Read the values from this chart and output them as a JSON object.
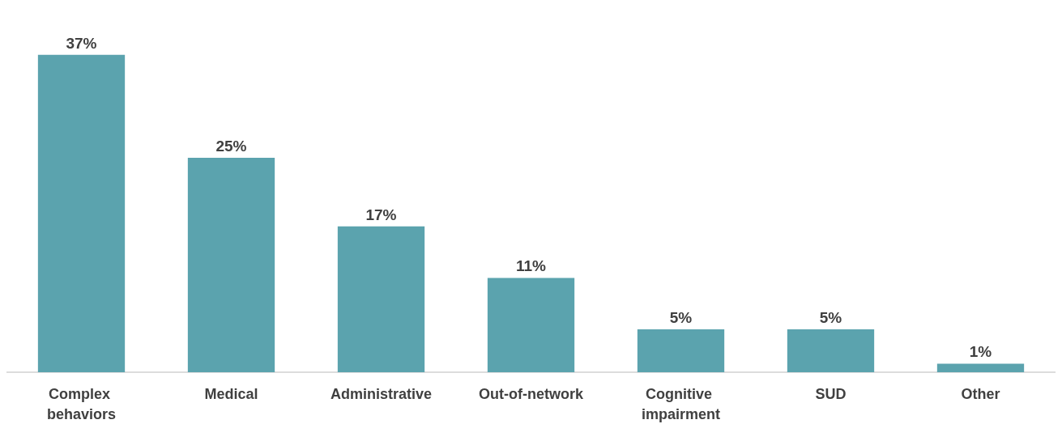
{
  "chart_data": {
    "type": "bar",
    "categories": [
      "Complex behaviors",
      "Medical",
      "Administrative",
      "Out-of-network",
      "Cognitive impairment",
      "SUD",
      "Other"
    ],
    "values": [
      37,
      25,
      17,
      11,
      5,
      5,
      1
    ],
    "value_labels": [
      "37%",
      "25%",
      "17%",
      "11%",
      "5%",
      "5%",
      "1%"
    ],
    "color": "#5ba3ae",
    "grid": false
  }
}
